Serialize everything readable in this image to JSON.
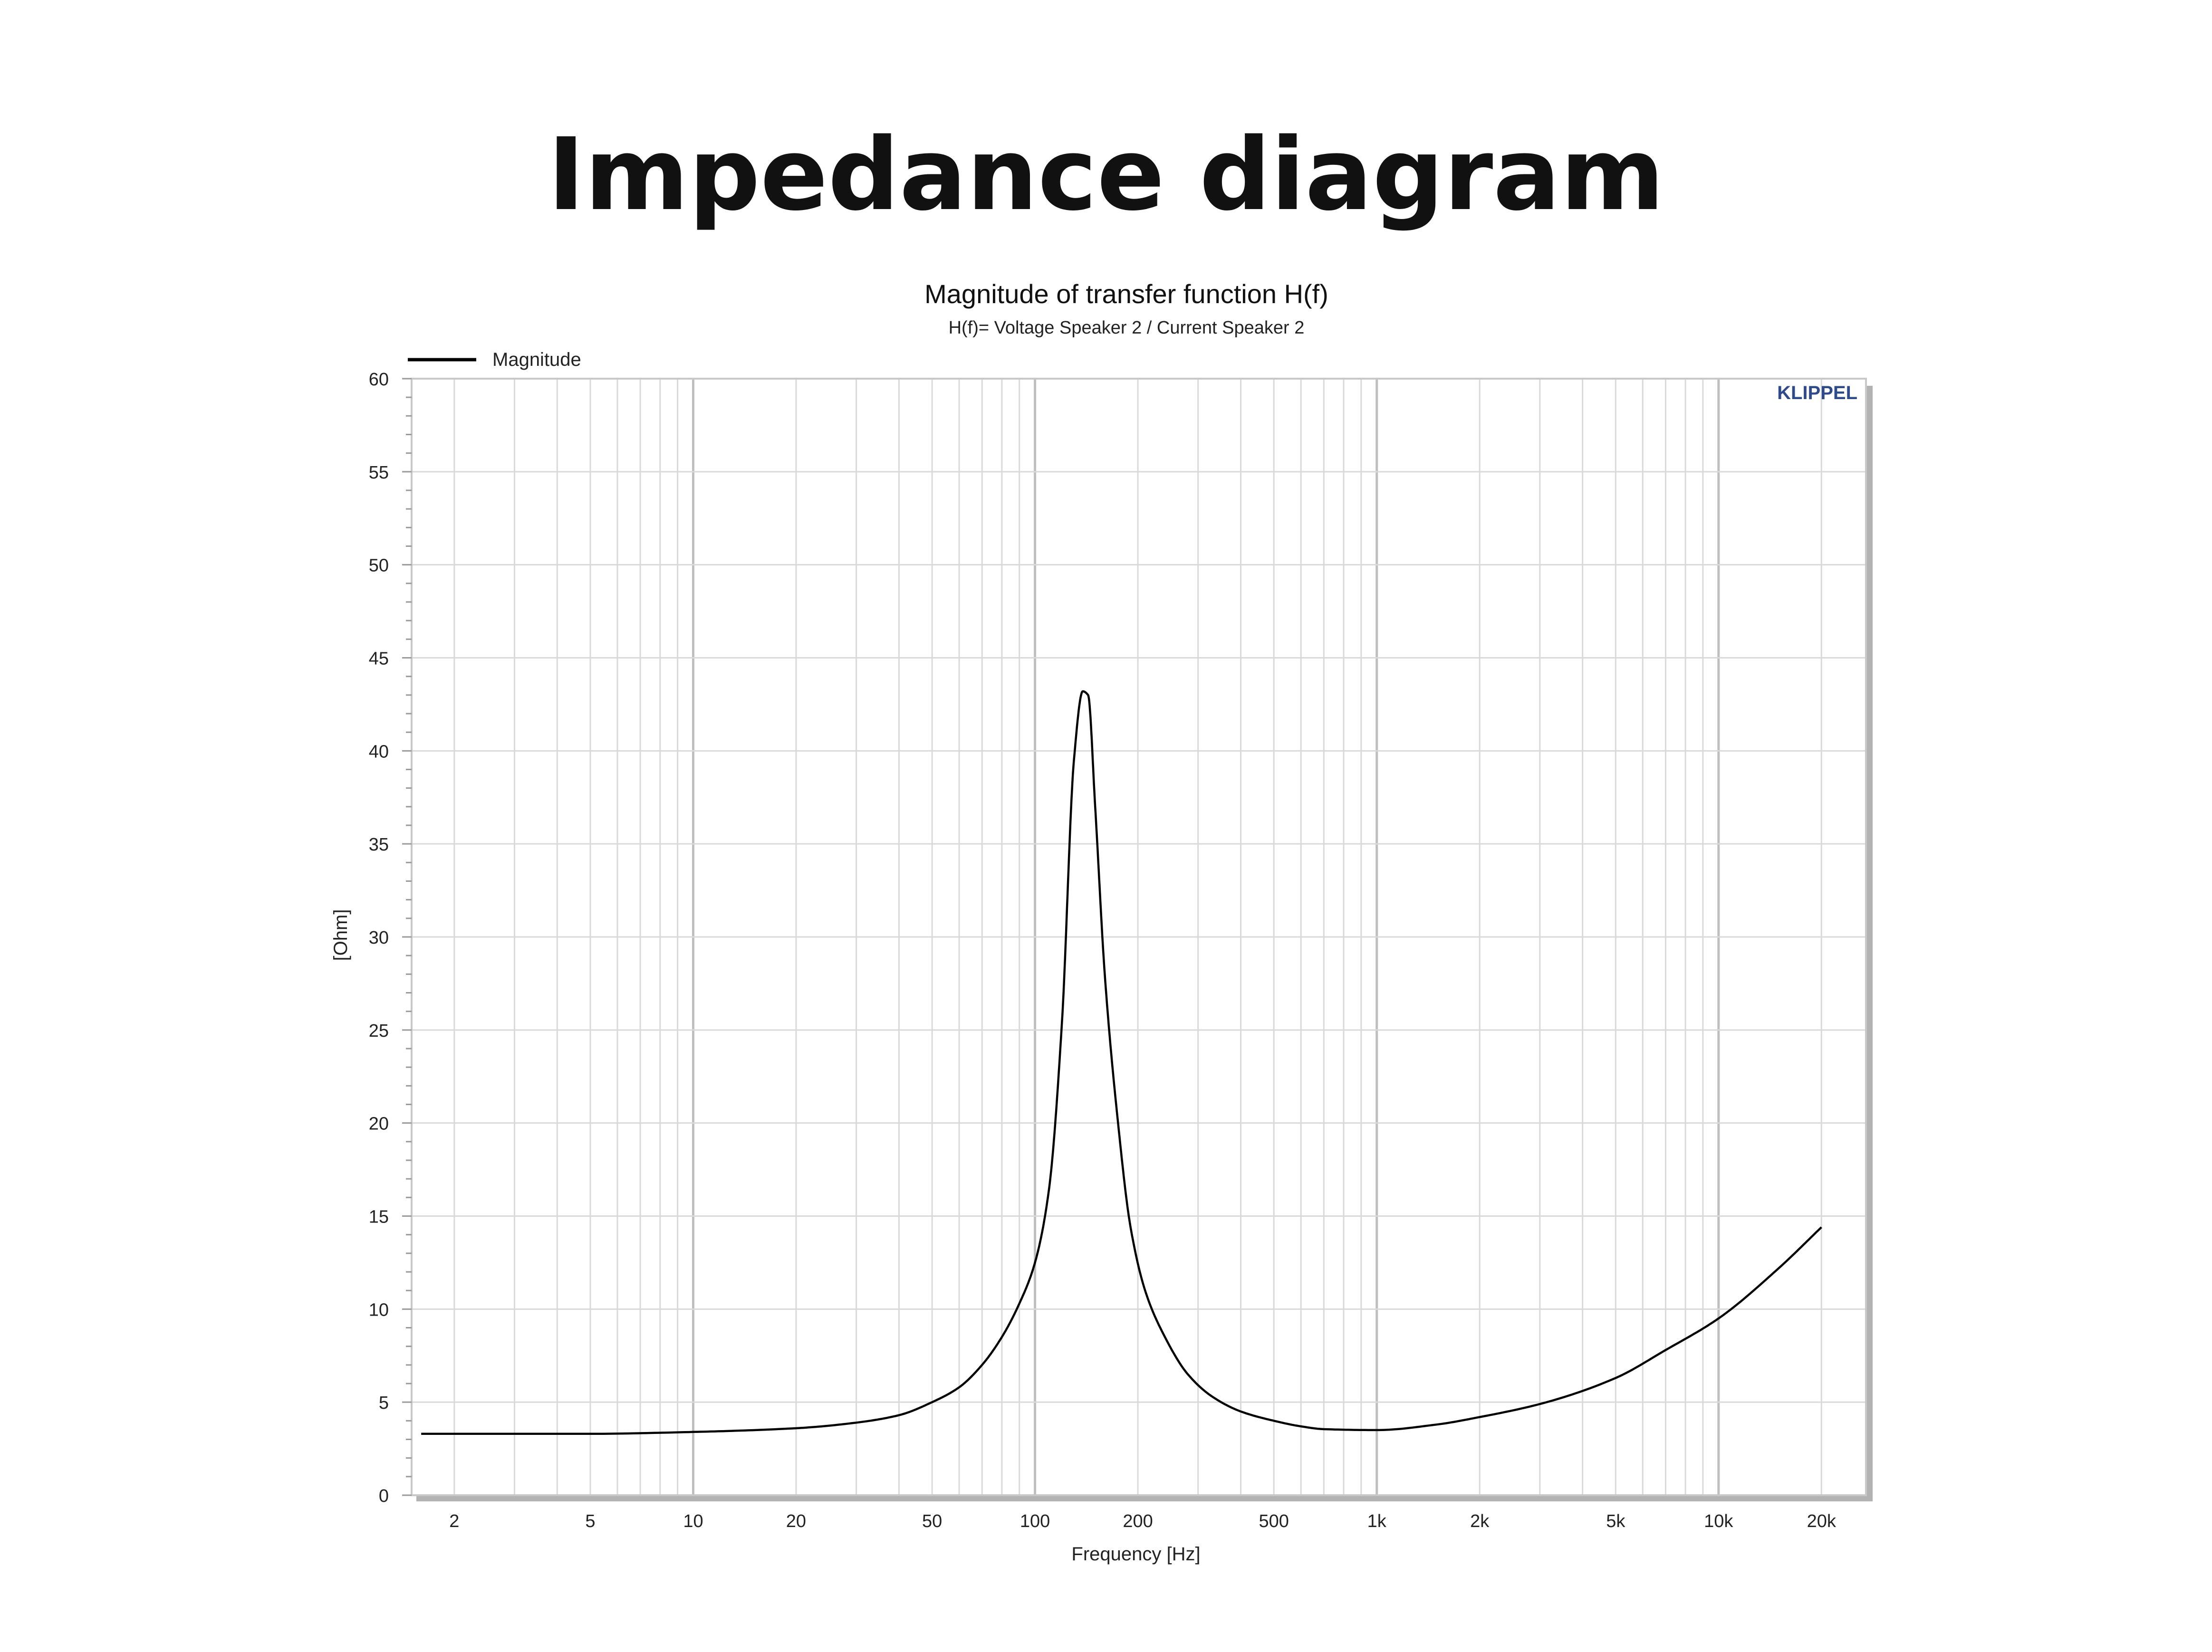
{
  "page": {
    "heading": "Impedance diagram"
  },
  "chart_data": {
    "type": "line",
    "title": "Magnitude of transfer function H(f)",
    "subtitle": "H(f)= Voltage Speaker 2 / Current Speaker 2",
    "xlabel": "Frequency [Hz]",
    "ylabel": "[Ohm]",
    "watermark": "KLIPPEL",
    "x_scale": "log",
    "xlim": [
      1.5,
      27000
    ],
    "ylim": [
      0,
      60
    ],
    "grid": true,
    "legend_position": "top-left",
    "x_ticks": [
      {
        "value": 2,
        "label": "2"
      },
      {
        "value": 5,
        "label": "5"
      },
      {
        "value": 10,
        "label": "10"
      },
      {
        "value": 20,
        "label": "20"
      },
      {
        "value": 50,
        "label": "50"
      },
      {
        "value": 100,
        "label": "100"
      },
      {
        "value": 200,
        "label": "200"
      },
      {
        "value": 500,
        "label": "500"
      },
      {
        "value": 1000,
        "label": "1k"
      },
      {
        "value": 2000,
        "label": "2k"
      },
      {
        "value": 5000,
        "label": "5k"
      },
      {
        "value": 10000,
        "label": "10k"
      },
      {
        "value": 20000,
        "label": "20k"
      }
    ],
    "y_ticks": [
      {
        "value": 0,
        "label": "0"
      },
      {
        "value": 5,
        "label": "5"
      },
      {
        "value": 10,
        "label": "10"
      },
      {
        "value": 15,
        "label": "15"
      },
      {
        "value": 20,
        "label": "20"
      },
      {
        "value": 25,
        "label": "25"
      },
      {
        "value": 30,
        "label": "30"
      },
      {
        "value": 35,
        "label": "35"
      },
      {
        "value": 40,
        "label": "40"
      },
      {
        "value": 45,
        "label": "45"
      },
      {
        "value": 50,
        "label": "50"
      },
      {
        "value": 55,
        "label": "55"
      },
      {
        "value": 60,
        "label": "60"
      }
    ],
    "series": [
      {
        "name": "Magnitude",
        "color": "#000000",
        "points": [
          [
            1.6,
            3.3
          ],
          [
            3,
            3.3
          ],
          [
            5,
            3.3
          ],
          [
            10,
            3.4
          ],
          [
            20,
            3.6
          ],
          [
            30,
            3.9
          ],
          [
            40,
            4.3
          ],
          [
            50,
            5.0
          ],
          [
            60,
            5.8
          ],
          [
            70,
            7.0
          ],
          [
            80,
            8.5
          ],
          [
            90,
            10.3
          ],
          [
            100,
            12.5
          ],
          [
            110,
            16.5
          ],
          [
            120,
            25.5
          ],
          [
            130,
            39.5
          ],
          [
            138,
            43.2
          ],
          [
            143,
            43.0
          ],
          [
            150,
            37.0
          ],
          [
            160,
            28.0
          ],
          [
            175,
            20.0
          ],
          [
            190,
            14.5
          ],
          [
            210,
            11.0
          ],
          [
            240,
            8.5
          ],
          [
            280,
            6.5
          ],
          [
            330,
            5.3
          ],
          [
            400,
            4.5
          ],
          [
            500,
            4.0
          ],
          [
            600,
            3.7
          ],
          [
            700,
            3.55
          ],
          [
            1000,
            3.5
          ],
          [
            1500,
            3.8
          ],
          [
            2000,
            4.2
          ],
          [
            3000,
            4.9
          ],
          [
            5000,
            6.3
          ],
          [
            7000,
            7.8
          ],
          [
            10000,
            9.5
          ],
          [
            15000,
            12.2
          ],
          [
            20000,
            14.4
          ]
        ]
      }
    ]
  },
  "colors": {
    "grid_minor": "#d9d9d9",
    "grid_major": "#bfbfbf",
    "frame": "#c8c8c8",
    "frame_shadow": "#b3b3b3",
    "watermark": "#2e4a8c",
    "curve": "#000000"
  }
}
